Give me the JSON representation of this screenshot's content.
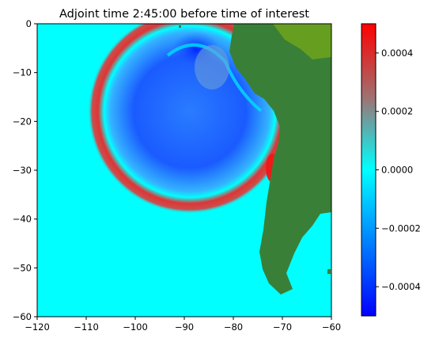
{
  "chart_data": {
    "type": "heatmap",
    "title": "Adjoint time 2:45:00 before time of interest",
    "xlabel": "",
    "ylabel": "",
    "xlim": [
      -120,
      -60
    ],
    "ylim": [
      -60,
      0
    ],
    "x_ticks": [
      "−120",
      "−110",
      "−100",
      "−90",
      "−80",
      "−70",
      "−60"
    ],
    "x_tick_values": [
      -120,
      -110,
      -100,
      -90,
      -80,
      -70,
      -60
    ],
    "y_ticks": [
      "0",
      "−10",
      "−20",
      "−30",
      "−40",
      "−50",
      "−60"
    ],
    "y_tick_values": [
      0,
      -10,
      -20,
      -30,
      -40,
      -50,
      -60
    ],
    "grid": false,
    "colorbar": {
      "range": [
        -0.0005,
        0.0005
      ],
      "ticks": [
        "0.0004",
        "0.0002",
        "0.0000",
        "−0.0002",
        "−0.0004"
      ],
      "tick_values": [
        0.0004,
        0.0002,
        0.0,
        -0.0002,
        -0.0004
      ],
      "colormap": [
        "#0000ff",
        "#00ffff",
        "#ff0000"
      ]
    },
    "colors": {
      "ocean_zero": "#00ffff",
      "land": "#3a7f38",
      "land_high": "#6ea51c",
      "positive_wave": "#d43a3a",
      "negative_core": "#0033ff"
    },
    "features": {
      "ring_center": [
        -90,
        -18
      ],
      "ring_outer_radius_deg": 16,
      "coastline_lon_at_lat": [
        [
          0,
          -80
        ],
        [
          -5,
          -81
        ],
        [
          -10,
          -79
        ],
        [
          -15,
          -76
        ],
        [
          -18,
          -72
        ],
        [
          -22,
          -71
        ],
        [
          -27,
          -71
        ],
        [
          -32,
          -72
        ],
        [
          -38,
          -74
        ],
        [
          -43,
          -74
        ],
        [
          -48,
          -75
        ],
        [
          -52,
          -74
        ],
        [
          -55,
          -70
        ]
      ]
    }
  }
}
